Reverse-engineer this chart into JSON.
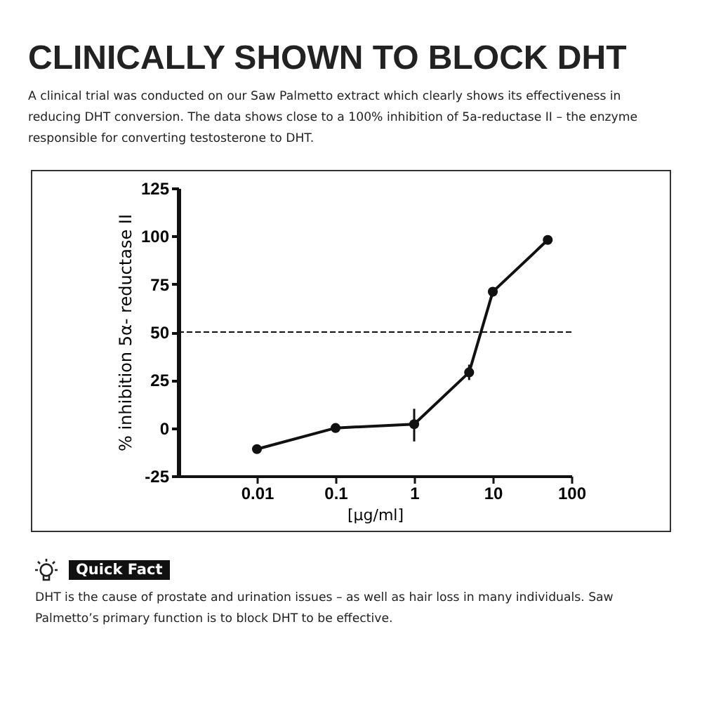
{
  "chart_data": {
    "type": "line",
    "title": "CLINICALLY SHOWN TO BLOCK DHT",
    "subtitle": "A clinical trial was conducted on our Saw Palmetto extract which clearly shows its effectiveness in reducing DHT conversion. The data shows close to a 100% inhibition of 5a-reductase II – the enzyme responsible for converting testosterone to DHT.",
    "xlabel": "[µg/ml]",
    "ylabel": "% inhibition 5α- reductase II",
    "x": [
      0.01,
      0.1,
      1,
      5,
      10,
      50
    ],
    "series": [
      {
        "color": "#111111",
        "values": [
          -11,
          0,
          2,
          29,
          71,
          98
        ],
        "errors": [
          null,
          null,
          [
            -7,
            10
          ],
          [
            25,
            33
          ],
          null,
          null
        ]
      }
    ],
    "log": "x",
    "xlim": [
      0.001,
      100
    ],
    "xticks": [
      0.01,
      0.1,
      1,
      10,
      100
    ],
    "ylim": [
      -25,
      125
    ],
    "yticks": [
      -25,
      0,
      25,
      50,
      75,
      100,
      125
    ],
    "ref_lines": [
      {
        "axis": "y",
        "value": 50,
        "line_style": "dashed",
        "color": "#111111"
      }
    ],
    "marker": "circle",
    "line_style": "solid",
    "grid": false,
    "annotations": [
      "Quick Fact",
      "DHT is the cause of prostate and urination issues – as well as hair loss in many individuals. Saw Palmetto’s primary function is to block DHT to be effective."
    ]
  }
}
